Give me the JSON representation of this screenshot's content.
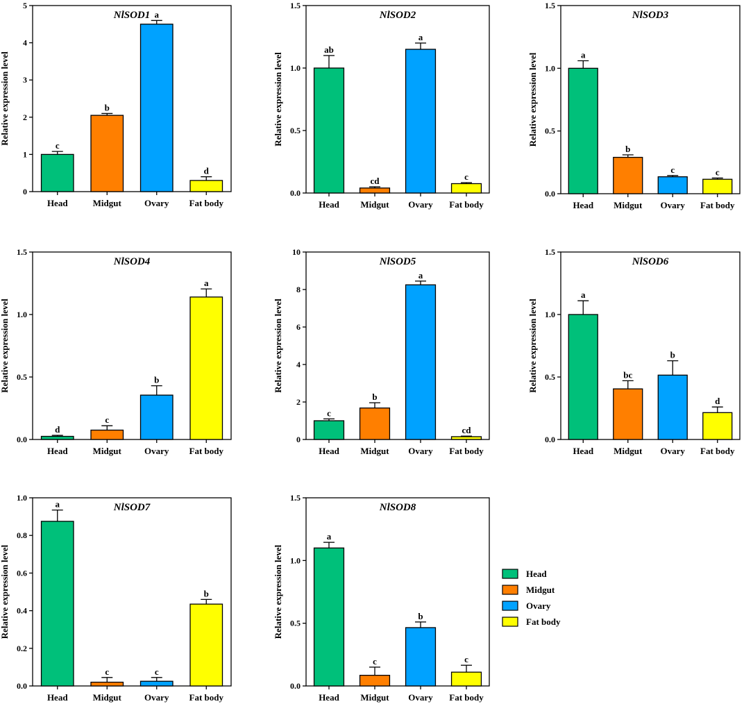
{
  "chart_data": [
    {
      "type": "bar",
      "title": "NlSOD1",
      "ylabel": "Relative expression level",
      "xlabel": "",
      "categories": [
        "Head",
        "Midgut",
        "Ovary",
        "Fat body"
      ],
      "values": [
        1.0,
        2.05,
        4.5,
        0.3
      ],
      "errors": [
        0.08,
        0.05,
        0.1,
        0.1
      ],
      "significance": [
        "c",
        "b",
        "a",
        "d"
      ],
      "ylim": [
        0,
        5
      ],
      "yticks": [
        0,
        1,
        2,
        3,
        4,
        5
      ],
      "ytick_labels": [
        "0",
        "1",
        "2",
        "3",
        "4",
        "5"
      ]
    },
    {
      "type": "bar",
      "title": "NlSOD2",
      "ylabel": "Relative expression level",
      "xlabel": "",
      "categories": [
        "Head",
        "Midgut",
        "Ovary",
        "Fat body"
      ],
      "values": [
        1.0,
        0.04,
        1.15,
        0.075
      ],
      "errors": [
        0.1,
        0.01,
        0.05,
        0.008
      ],
      "significance": [
        "ab",
        "cd",
        "a",
        "c"
      ],
      "ylim": [
        0,
        1.5
      ],
      "yticks": [
        0,
        0.5,
        1.0,
        1.5
      ],
      "ytick_labels": [
        "0.0",
        "0.5",
        "1.0",
        "1.5"
      ]
    },
    {
      "type": "bar",
      "title": "NlSOD3",
      "ylabel": "Relative expression level",
      "xlabel": "",
      "categories": [
        "Head",
        "Midgut",
        "Ovary",
        "Fat body"
      ],
      "values": [
        1.0,
        0.29,
        0.135,
        0.115
      ],
      "errors": [
        0.06,
        0.02,
        0.01,
        0.01
      ],
      "significance": [
        "a",
        "b",
        "c",
        "c"
      ],
      "ylim": [
        0,
        1.5
      ],
      "yticks": [
        0,
        0.5,
        1.0,
        1.5
      ],
      "ytick_labels": [
        "0.0",
        "0.5",
        "1.0",
        "1.5"
      ]
    },
    {
      "type": "bar",
      "title": "NlSOD4",
      "ylabel": "Relative expression level",
      "xlabel": "",
      "categories": [
        "Head",
        "Midgut",
        "Ovary",
        "Fat body"
      ],
      "values": [
        0.025,
        0.075,
        0.355,
        1.14
      ],
      "errors": [
        0.008,
        0.035,
        0.075,
        0.065
      ],
      "significance": [
        "d",
        "c",
        "b",
        "a"
      ],
      "ylim": [
        0,
        1.5
      ],
      "yticks": [
        0,
        0.5,
        1.0,
        1.5
      ],
      "ytick_labels": [
        "0.0",
        "0.5",
        "1.0",
        "1.5"
      ]
    },
    {
      "type": "bar",
      "title": "NlSOD5",
      "ylabel": "Relative expression level",
      "xlabel": "",
      "categories": [
        "Head",
        "Midgut",
        "Ovary",
        "Fat body"
      ],
      "values": [
        1.0,
        1.68,
        8.25,
        0.15
      ],
      "errors": [
        0.1,
        0.28,
        0.2,
        0.03
      ],
      "significance": [
        "c",
        "b",
        "a",
        "cd"
      ],
      "ylim": [
        0,
        10
      ],
      "yticks": [
        0,
        2,
        4,
        6,
        8,
        10
      ],
      "ytick_labels": [
        "0",
        "2",
        "4",
        "6",
        "8",
        "10"
      ]
    },
    {
      "type": "bar",
      "title": "NlSOD6",
      "ylabel": "Relative expression level",
      "xlabel": "",
      "categories": [
        "Head",
        "Midgut",
        "Ovary",
        "Fat body"
      ],
      "values": [
        1.0,
        0.405,
        0.515,
        0.215
      ],
      "errors": [
        0.11,
        0.065,
        0.115,
        0.045
      ],
      "significance": [
        "a",
        "bc",
        "b",
        "d"
      ],
      "ylim": [
        0,
        1.5
      ],
      "yticks": [
        0,
        0.5,
        1.0,
        1.5
      ],
      "ytick_labels": [
        "0.0",
        "0.5",
        "1.0",
        "1.5"
      ]
    },
    {
      "type": "bar",
      "title": "NlSOD7",
      "ylabel": "Relative expression level",
      "xlabel": "",
      "categories": [
        "Head",
        "Midgut",
        "Ovary",
        "Fat body"
      ],
      "values": [
        0.875,
        0.02,
        0.025,
        0.435
      ],
      "errors": [
        0.06,
        0.025,
        0.02,
        0.025
      ],
      "significance": [
        "a",
        "c",
        "c",
        "b"
      ],
      "ylim": [
        0,
        1.0
      ],
      "yticks": [
        0,
        0.2,
        0.4,
        0.6,
        0.8,
        1.0
      ],
      "ytick_labels": [
        "0.0",
        "0.2",
        "0.4",
        "0.6",
        "0.8",
        "1.0"
      ]
    },
    {
      "type": "bar",
      "title": "NlSOD8",
      "ylabel": "Relative expression level",
      "xlabel": "",
      "categories": [
        "Head",
        "Midgut",
        "Ovary",
        "Fat body"
      ],
      "values": [
        1.1,
        0.085,
        0.465,
        0.11
      ],
      "errors": [
        0.045,
        0.065,
        0.045,
        0.055
      ],
      "significance": [
        "a",
        "c",
        "b",
        "c"
      ],
      "ylim": [
        0,
        1.5
      ],
      "yticks": [
        0,
        0.5,
        1.0,
        1.5
      ],
      "ytick_labels": [
        "0.0",
        "0.5",
        "1.0",
        "1.5"
      ]
    }
  ],
  "legend": {
    "items": [
      {
        "label": "Head",
        "color": "#00c07a"
      },
      {
        "label": "Midgut",
        "color": "#ff7f00"
      },
      {
        "label": "Ovary",
        "color": "#00a2ff"
      },
      {
        "label": "Fat body",
        "color": "#ffff00"
      }
    ]
  },
  "colors": [
    "#00c07a",
    "#ff7f00",
    "#00a2ff",
    "#ffff00"
  ]
}
